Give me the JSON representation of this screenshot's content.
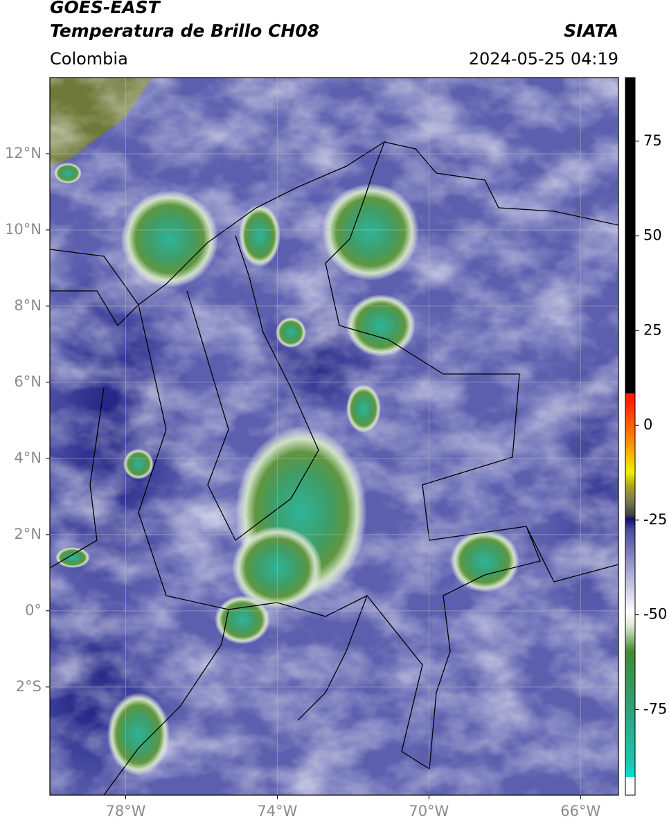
{
  "header": {
    "title": "GOES-EAST",
    "subtitle": "Temperatura de Brillo CH08",
    "region": "Colombia",
    "source": "SIATA",
    "timestamp": "2024-05-25 04:19"
  },
  "map": {
    "lon_range": [
      -80,
      -65
    ],
    "lat_range": [
      -4.84,
      14
    ],
    "lon_ticks": [
      {
        "value": -78,
        "label": "78°W"
      },
      {
        "value": -74,
        "label": "74°W"
      },
      {
        "value": -70,
        "label": "70°W"
      },
      {
        "value": -66,
        "label": "66°W"
      }
    ],
    "lat_ticks": [
      {
        "value": 12,
        "label": "12°N"
      },
      {
        "value": 10,
        "label": "10°N"
      },
      {
        "value": 8,
        "label": "8°N"
      },
      {
        "value": 6,
        "label": "6°N"
      },
      {
        "value": 4,
        "label": "4°N"
      },
      {
        "value": 2,
        "label": "2°N"
      },
      {
        "value": 0,
        "label": "0°"
      },
      {
        "value": -2,
        "label": "2°S"
      }
    ]
  },
  "colorbar": {
    "range": [
      -97.6,
      91.8
    ],
    "ticks": [
      75,
      50,
      25,
      0,
      -25,
      -50,
      -75
    ]
  }
}
